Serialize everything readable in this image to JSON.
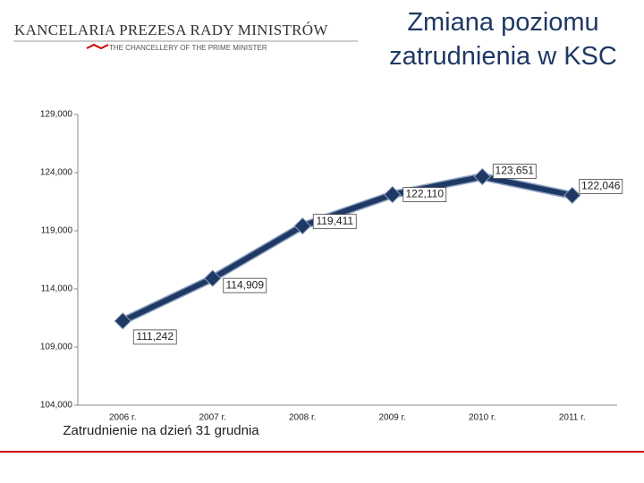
{
  "header": {
    "institution": "KANCELARIA PREZESA RADY MINISTRÓW",
    "institution_en": "THE CHANCELLERY OF THE PRIME MINISTER"
  },
  "chart_data": {
    "type": "line",
    "title": "Zmiana poziomu zatrudnienia w KSC",
    "x_label": "Zatrudnienie na dzień 31 grudnia",
    "categories": [
      "2006 r.",
      "2007 r.",
      "2008 r.",
      "2009 r.",
      "2010 r.",
      "2011 r."
    ],
    "values": [
      111242,
      114909,
      119411,
      122110,
      123651,
      122046
    ],
    "value_labels": [
      "111,242",
      "114,909",
      "119,411",
      "122,110",
      "123,651",
      "122,046"
    ],
    "color": "#1f3864",
    "ylim": [
      104000,
      129000
    ],
    "yticks": [
      {
        "value": 104000,
        "label": "104,000"
      },
      {
        "value": 109000,
        "label": "109,000"
      },
      {
        "value": 114000,
        "label": "114,000"
      },
      {
        "value": 119000,
        "label": "119,000"
      },
      {
        "value": 124000,
        "label": "124,000"
      },
      {
        "value": 129000,
        "label": "129,000"
      }
    ]
  }
}
